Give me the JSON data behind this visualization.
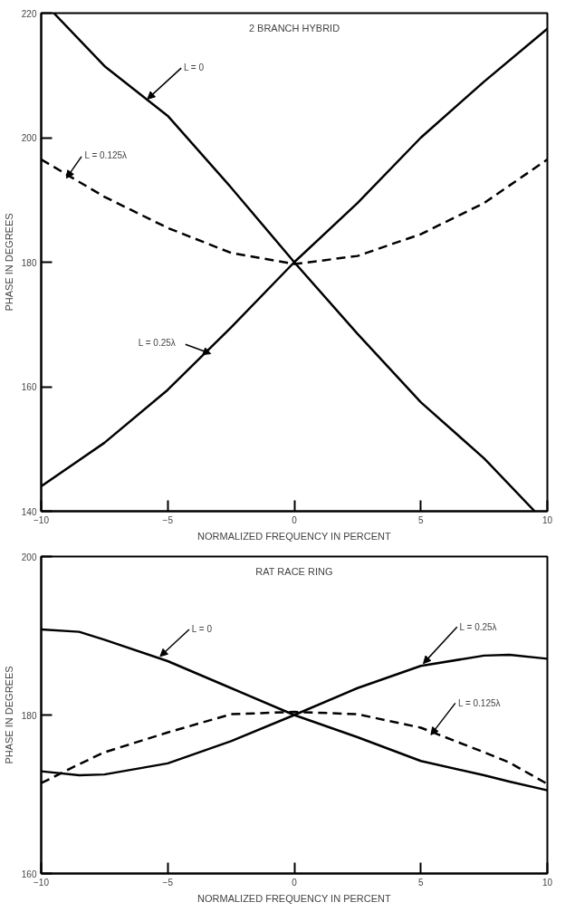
{
  "chart_data": [
    {
      "type": "line",
      "title": "2 BRANCH HYBRID",
      "xlabel": "NORMALIZED FREQUENCY IN PERCENT",
      "ylabel": "PHASE IN DEGREES",
      "xlim": [
        -10,
        10
      ],
      "ylim": [
        140,
        220
      ],
      "xticks": [
        -10,
        -5,
        0,
        5,
        10
      ],
      "yticks": [
        140,
        160,
        180,
        200,
        220
      ],
      "grid": false,
      "x": [
        -10,
        -7.5,
        -5,
        -2.5,
        0,
        2.5,
        5,
        7.5,
        10
      ],
      "series": [
        {
          "color": "#000000",
          "line_style": "solid",
          "x": [
            -9.5,
            -7.5,
            -5,
            -2.5,
            0,
            2.5,
            5,
            7.5,
            9.5
          ],
          "values": [
            220,
            211.5,
            203.5,
            192,
            180,
            168.5,
            157.5,
            148.5,
            140
          ]
        },
        {
          "color": "#000000",
          "line_style": "dashed",
          "values": [
            196.5,
            190.5,
            185.5,
            181.5,
            179.7,
            181,
            184.5,
            189.5,
            196.5
          ]
        },
        {
          "color": "#000000",
          "line_style": "solid",
          "values": [
            144,
            151,
            159.5,
            169.5,
            180,
            189.5,
            200,
            209,
            217.5
          ]
        }
      ],
      "annotations": [
        {
          "text": "L = 0",
          "x": -5.8,
          "y": 206.2
        },
        {
          "text": "L = 0.125λ",
          "x": -9.0,
          "y": 193.5
        },
        {
          "text": "L = 0.25λ",
          "x": -3.3,
          "y": 165.3
        }
      ]
    },
    {
      "type": "line",
      "title": "RAT RACE RING",
      "xlabel": "NORMALIZED FREQUENCY IN PERCENT",
      "ylabel": "PHASE IN DEGREES",
      "xlim": [
        -10,
        10
      ],
      "ylim": [
        160,
        200
      ],
      "xticks": [
        -10,
        -5,
        0,
        5,
        10
      ],
      "yticks": [
        160,
        180,
        200
      ],
      "grid": false,
      "x": [
        -10,
        -8.5,
        -7.5,
        -5,
        -2.5,
        0,
        2.5,
        5,
        7.5,
        8.5,
        10
      ],
      "series": [
        {
          "color": "#000000",
          "line_style": "solid",
          "values": [
            190.8,
            190.5,
            189.5,
            186.8,
            183.4,
            180,
            177.2,
            174.2,
            172.4,
            171.6,
            170.5
          ]
        },
        {
          "color": "#000000",
          "line_style": "solid",
          "values": [
            172.9,
            172.4,
            172.5,
            173.9,
            176.7,
            180,
            183.4,
            186.2,
            187.5,
            187.6,
            187.1
          ]
        },
        {
          "color": "#000000",
          "line_style": "dashed",
          "values": [
            171.4,
            173.8,
            175.3,
            177.8,
            180.1,
            180.4,
            180.1,
            178.4,
            175.3,
            174.0,
            171.3
          ]
        }
      ],
      "annotations": [
        {
          "text": "L = 0",
          "x": -5.3,
          "y": 187.4
        },
        {
          "text": "L = 0.25λ",
          "x": 5.1,
          "y": 186.5
        },
        {
          "text": "L = 0.125λ",
          "x": 5.4,
          "y": 177.5
        }
      ]
    }
  ]
}
